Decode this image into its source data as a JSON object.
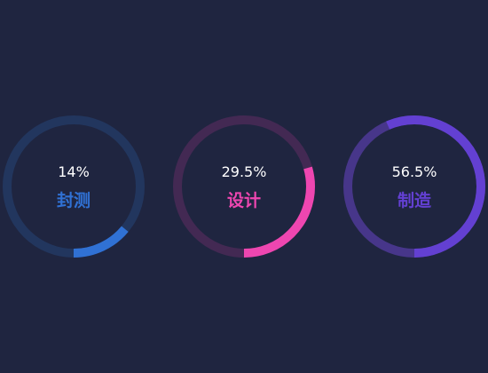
{
  "colors": {
    "background": "#1f2540"
  },
  "chart_data": {
    "type": "pie",
    "title": "",
    "charts": [
      {
        "label": "封测",
        "value_text": "14%",
        "value": 14,
        "color": "#3071d4",
        "track_color": "#22365e"
      },
      {
        "label": "设计",
        "value_text": "29.5%",
        "value": 29.5,
        "color": "#ee46b0",
        "track_color": "#432953"
      },
      {
        "label": "制造",
        "value_text": "56.5%",
        "value": 56.5,
        "color": "#6340d2",
        "track_color": "#47368a"
      }
    ]
  }
}
